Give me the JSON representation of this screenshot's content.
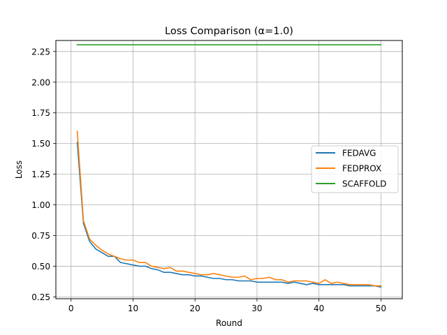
{
  "chart_data": {
    "type": "line",
    "title": "Loss Comparison (α=1.0)",
    "xlabel": "Round",
    "ylabel": "Loss",
    "xlim": [
      -2.45,
      53.45
    ],
    "ylim": [
      0.235,
      2.34
    ],
    "x_ticks": [
      0,
      10,
      20,
      30,
      40,
      50
    ],
    "x_tick_labels": [
      "0",
      "10",
      "20",
      "30",
      "40",
      "50"
    ],
    "y_ticks": [
      0.25,
      0.5,
      0.75,
      1.0,
      1.25,
      1.5,
      1.75,
      2.0,
      2.25
    ],
    "y_tick_labels": [
      "0.25",
      "0.50",
      "0.75",
      "1.00",
      "1.25",
      "1.50",
      "1.75",
      "2.00",
      "2.25"
    ],
    "grid": true,
    "legend_position": "center-right",
    "x": [
      1,
      2,
      3,
      4,
      5,
      6,
      7,
      8,
      9,
      10,
      11,
      12,
      13,
      14,
      15,
      16,
      17,
      18,
      19,
      20,
      21,
      22,
      23,
      24,
      25,
      26,
      27,
      28,
      29,
      30,
      31,
      32,
      33,
      34,
      35,
      36,
      37,
      38,
      39,
      40,
      41,
      42,
      43,
      44,
      45,
      46,
      47,
      48,
      49,
      50
    ],
    "series": [
      {
        "name": "FEDAVG",
        "color": "#1f77b4",
        "values": [
          1.51,
          0.85,
          0.7,
          0.64,
          0.61,
          0.58,
          0.58,
          0.53,
          0.52,
          0.51,
          0.5,
          0.5,
          0.48,
          0.47,
          0.45,
          0.45,
          0.44,
          0.43,
          0.43,
          0.42,
          0.42,
          0.41,
          0.4,
          0.4,
          0.39,
          0.39,
          0.38,
          0.38,
          0.38,
          0.37,
          0.37,
          0.37,
          0.37,
          0.37,
          0.36,
          0.37,
          0.36,
          0.35,
          0.36,
          0.35,
          0.35,
          0.35,
          0.35,
          0.35,
          0.34,
          0.34,
          0.34,
          0.34,
          0.34,
          0.33
        ]
      },
      {
        "name": "FEDPROX",
        "color": "#ff7f0e",
        "values": [
          1.6,
          0.87,
          0.72,
          0.67,
          0.63,
          0.6,
          0.58,
          0.56,
          0.55,
          0.55,
          0.53,
          0.53,
          0.5,
          0.49,
          0.48,
          0.49,
          0.46,
          0.46,
          0.45,
          0.44,
          0.43,
          0.43,
          0.44,
          0.43,
          0.42,
          0.41,
          0.41,
          0.42,
          0.39,
          0.4,
          0.4,
          0.41,
          0.39,
          0.39,
          0.37,
          0.38,
          0.38,
          0.38,
          0.37,
          0.36,
          0.39,
          0.36,
          0.37,
          0.36,
          0.35,
          0.35,
          0.35,
          0.35,
          0.34,
          0.34
        ]
      },
      {
        "name": "SCAFFOLD",
        "color": "#2ca02c",
        "values": [
          2.305,
          2.305,
          2.305,
          2.305,
          2.305,
          2.305,
          2.305,
          2.305,
          2.305,
          2.305,
          2.305,
          2.305,
          2.305,
          2.305,
          2.305,
          2.305,
          2.305,
          2.305,
          2.305,
          2.305,
          2.305,
          2.305,
          2.305,
          2.305,
          2.305,
          2.305,
          2.305,
          2.305,
          2.305,
          2.305,
          2.305,
          2.305,
          2.305,
          2.305,
          2.305,
          2.305,
          2.305,
          2.305,
          2.305,
          2.305,
          2.305,
          2.305,
          2.305,
          2.305,
          2.305,
          2.305,
          2.305,
          2.305,
          2.305,
          2.305
        ]
      }
    ]
  }
}
